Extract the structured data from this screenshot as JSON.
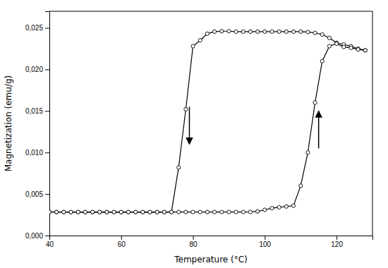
{
  "chart_data": {
    "type": "line",
    "xlabel": "Temperature (°C)",
    "ylabel": "Magnetization (emu/g)",
    "xlim": [
      40,
      130
    ],
    "ylim": [
      0.0,
      0.027
    ],
    "xticks": [
      40,
      60,
      80,
      100,
      120
    ],
    "yticks": [
      {
        "value": 0.0,
        "label": "0,000"
      },
      {
        "value": 0.005,
        "label": "0,005"
      },
      {
        "value": 0.01,
        "label": "0,010"
      },
      {
        "value": 0.015,
        "label": "0,015"
      },
      {
        "value": 0.02,
        "label": "0,020"
      },
      {
        "value": 0.025,
        "label": "0,025"
      }
    ],
    "series": [
      {
        "color": "#000000",
        "marker": "o",
        "x": [
          128,
          126,
          124,
          122,
          120,
          118,
          116,
          114,
          112,
          110,
          108,
          106,
          104,
          102,
          100,
          98,
          96,
          94,
          92,
          90,
          88,
          86,
          84,
          82,
          80,
          78,
          76,
          74,
          72,
          70,
          68,
          66,
          64,
          62,
          60,
          58,
          56,
          54,
          52,
          50,
          48,
          46,
          44,
          42,
          40
        ],
        "values": [
          0.0223,
          0.0225,
          0.0228,
          0.023,
          0.0232,
          0.0238,
          0.0242,
          0.0244,
          0.0245,
          0.02455,
          0.02455,
          0.02455,
          0.02455,
          0.02455,
          0.02455,
          0.02455,
          0.02455,
          0.02455,
          0.02455,
          0.0246,
          0.0246,
          0.02455,
          0.0243,
          0.0235,
          0.0228,
          0.0152,
          0.0082,
          0.00283,
          0.00282,
          0.00282,
          0.00282,
          0.00282,
          0.00282,
          0.00282,
          0.00282,
          0.00282,
          0.00282,
          0.00282,
          0.00282,
          0.00282,
          0.00282,
          0.00282,
          0.00283,
          0.00283,
          0.00285
        ]
      },
      {
        "color": "#000000",
        "marker": "o",
        "x": [
          40,
          42,
          44,
          46,
          48,
          50,
          52,
          54,
          56,
          58,
          60,
          62,
          64,
          66,
          68,
          70,
          72,
          74,
          76,
          78,
          80,
          82,
          84,
          86,
          88,
          90,
          92,
          94,
          96,
          98,
          100,
          102,
          104,
          106,
          108,
          110,
          112,
          114,
          116,
          118,
          120,
          122,
          124,
          126,
          128
        ],
        "values": [
          0.00283,
          0.00283,
          0.00283,
          0.00283,
          0.00283,
          0.00283,
          0.00283,
          0.00283,
          0.00283,
          0.00283,
          0.00283,
          0.00283,
          0.00283,
          0.00283,
          0.00283,
          0.00283,
          0.00283,
          0.00283,
          0.00283,
          0.00283,
          0.00283,
          0.00283,
          0.00283,
          0.00283,
          0.00283,
          0.00283,
          0.00283,
          0.00283,
          0.00285,
          0.0029,
          0.0031,
          0.0033,
          0.0034,
          0.0035,
          0.0036,
          0.006,
          0.01,
          0.016,
          0.021,
          0.0228,
          0.0231,
          0.0227,
          0.0226,
          0.0224,
          0.0223
        ]
      }
    ],
    "annotations": [
      {
        "type": "arrow",
        "x": 79,
        "y_start": 0.0155,
        "y_end": 0.011
      },
      {
        "type": "arrow",
        "x": 115,
        "y_start": 0.0105,
        "y_end": 0.015
      }
    ]
  }
}
